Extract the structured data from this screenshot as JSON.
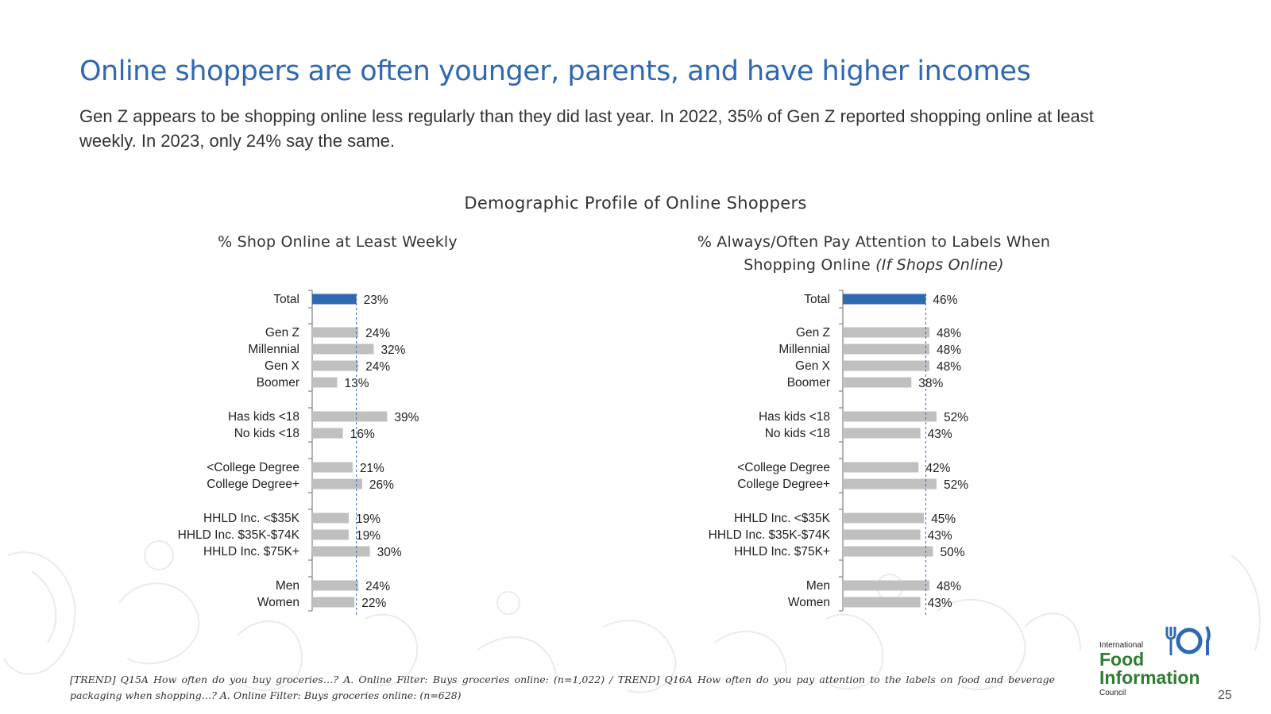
{
  "slide": {
    "title": "Online shoppers are often younger, parents, and have higher incomes",
    "subtitle": "Gen Z appears to be shopping online less regularly than they did last year. In 2022, 35% of Gen Z reported shopping online at least weekly. In 2023, only 24% say the same.",
    "main_heading": "Demographic Profile of Online Shoppers",
    "footnote": "[TREND] Q15A How often do you buy groceries…? A. Online Filter: Buys groceries online: (n=1,022) / TREND] Q16A How often do you pay attention to the labels on food and beverage packaging when shopping…? A. Online Filter: Buys groceries online: (n=628)",
    "page_number": "25"
  },
  "logo": {
    "line1": "International",
    "line2": "Food",
    "line3": "Information",
    "line4": "Council"
  },
  "colors": {
    "title": "#2f68b3",
    "highlight_bar": "#2f68b3",
    "bar": "#c0c0c0",
    "logo_green": "#2e7d32",
    "logo_blue": "#2f68b3"
  },
  "chart_data": [
    {
      "type": "bar",
      "orientation": "horizontal",
      "title": "% Shop Online at Least Weekly",
      "categories": [
        "Total",
        "Gen Z",
        "Millennial",
        "Gen X",
        "Boomer",
        "Has kids <18",
        "No kids <18",
        "<College Degree",
        "College Degree+",
        "HHLD Inc. <$35K",
        "HHLD Inc. $35K-$74K",
        "HHLD Inc. $75K+",
        "Men",
        "Women"
      ],
      "groups": [
        [
          0
        ],
        [
          1,
          2,
          3,
          4
        ],
        [
          5,
          6
        ],
        [
          7,
          8
        ],
        [
          9,
          10,
          11
        ],
        [
          12,
          13
        ]
      ],
      "values": [
        23,
        24,
        32,
        24,
        13,
        39,
        16,
        21,
        26,
        19,
        19,
        30,
        24,
        22
      ],
      "labels": [
        "23%",
        "24%",
        "32%",
        "24%",
        "13%",
        "39%",
        "16%",
        "21%",
        "26%",
        "19%",
        "19%",
        "30%",
        "24%",
        "22%"
      ],
      "highlight_index": 0,
      "reference_line": 23,
      "xlim": [
        0,
        100
      ]
    },
    {
      "type": "bar",
      "orientation": "horizontal",
      "title": "% Always/Often Pay Attention to Labels When Shopping Online",
      "title_suffix": "(If Shops Online)",
      "categories": [
        "Total",
        "Gen Z",
        "Millennial",
        "Gen X",
        "Boomer",
        "Has kids <18",
        "No kids <18",
        "<College Degree",
        "College Degree+",
        "HHLD Inc. <$35K",
        "HHLD Inc. $35K-$74K",
        "HHLD Inc. $75K+",
        "Men",
        "Women"
      ],
      "groups": [
        [
          0
        ],
        [
          1,
          2,
          3,
          4
        ],
        [
          5,
          6
        ],
        [
          7,
          8
        ],
        [
          9,
          10,
          11
        ],
        [
          12,
          13
        ]
      ],
      "values": [
        46,
        48,
        48,
        48,
        38,
        52,
        43,
        42,
        52,
        45,
        43,
        50,
        48,
        43
      ],
      "labels": [
        "46%",
        "48%",
        "48%",
        "48%",
        "38%",
        "52%",
        "43%",
        "42%",
        "52%",
        "45%",
        "43%",
        "50%",
        "48%",
        "43%"
      ],
      "highlight_index": 0,
      "reference_line": 46,
      "xlim": [
        0,
        100
      ]
    }
  ]
}
